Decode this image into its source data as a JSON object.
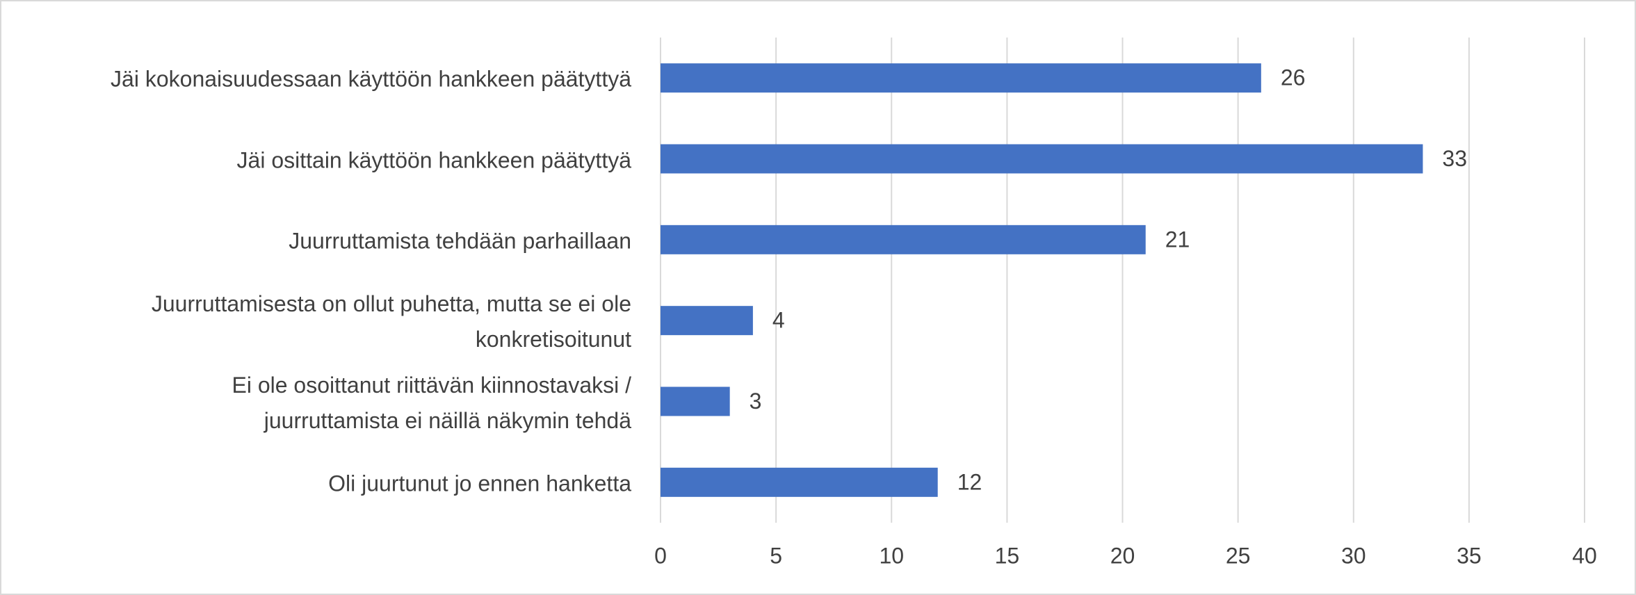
{
  "chart_data": {
    "type": "bar",
    "orientation": "horizontal",
    "categories": [
      "Jäi kokonaisuudessaan käyttöön hankkeen päätyttyä",
      "Jäi osittain käyttöön hankkeen päätyttyä",
      "Juurruttamista tehdään parhaillaan",
      "Juurruttamisesta on ollut puhetta, mutta se ei ole\nkonkretisoitunut",
      "Ei ole osoittanut riittävän kiinnostavaksi /\njuurruttamista ei näillä näkymin tehdä",
      "Oli juurtunut jo ennen hanketta"
    ],
    "values": [
      26,
      33,
      21,
      4,
      3,
      12
    ],
    "color": "#4472c4",
    "xlim": [
      0,
      40
    ],
    "xticks": [
      0,
      5,
      10,
      15,
      20,
      25,
      30,
      35,
      40
    ],
    "grid": true
  }
}
